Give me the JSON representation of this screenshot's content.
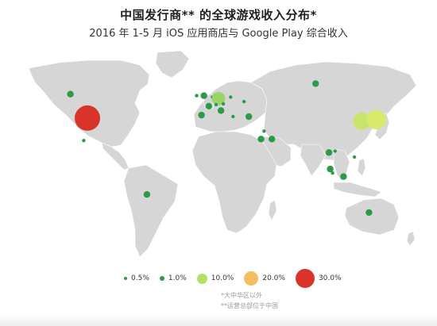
{
  "header": {
    "title": "中国发行商** 的全球游戏收入分布*",
    "subtitle": "2016 年 1-5 月 iOS 应用商店与 Google Play 综合收入"
  },
  "map": {
    "land_color": "#d6d6d6",
    "markers": [
      {
        "region": "canada-west",
        "lon": -112,
        "lat": 54,
        "share": 1.0,
        "color": "#2e9a49"
      },
      {
        "region": "united-states",
        "lon": -98,
        "lat": 38,
        "share": 30.0,
        "color": "#d9342b"
      },
      {
        "region": "mexico",
        "lon": -101,
        "lat": 23,
        "share": 0.5,
        "color": "#2e9a49"
      },
      {
        "region": "brazil",
        "lon": -49,
        "lat": -13,
        "share": 1.0,
        "color": "#2e9a49"
      },
      {
        "region": "united-kingdom",
        "lon": -2,
        "lat": 53,
        "share": 1.0,
        "color": "#2e9a49"
      },
      {
        "region": "ireland",
        "lon": -8,
        "lat": 53,
        "share": 0.5,
        "color": "#2e9a49"
      },
      {
        "region": "netherlands",
        "lon": 5,
        "lat": 52,
        "share": 0.5,
        "color": "#2e9a49"
      },
      {
        "region": "germany",
        "lon": 10,
        "lat": 51,
        "share": 4.0,
        "color": "#9ed36a"
      },
      {
        "region": "france",
        "lon": 2,
        "lat": 46,
        "share": 1.0,
        "color": "#2e9a49"
      },
      {
        "region": "switzerland",
        "lon": 8,
        "lat": 47,
        "share": 0.5,
        "color": "#2e9a49"
      },
      {
        "region": "austria",
        "lon": 14,
        "lat": 47.5,
        "share": 0.5,
        "color": "#2e9a49"
      },
      {
        "region": "poland",
        "lon": 20,
        "lat": 52,
        "share": 0.5,
        "color": "#2e9a49"
      },
      {
        "region": "italy",
        "lon": 12,
        "lat": 43,
        "share": 1.0,
        "color": "#2e9a49"
      },
      {
        "region": "spain",
        "lon": -4,
        "lat": 40,
        "share": 1.0,
        "color": "#2e9a49"
      },
      {
        "region": "greece",
        "lon": 22,
        "lat": 39,
        "share": 0.5,
        "color": "#2e9a49"
      },
      {
        "region": "turkey",
        "lon": 35,
        "lat": 39,
        "share": 1.0,
        "color": "#2e9a49"
      },
      {
        "region": "russia",
        "lon": 90,
        "lat": 61,
        "share": 1.0,
        "color": "#2e9a49"
      },
      {
        "region": "ukraine",
        "lon": 31,
        "lat": 49,
        "share": 0.5,
        "color": "#2e9a49"
      },
      {
        "region": "kuwait",
        "lon": 47.5,
        "lat": 29.3,
        "share": 0.5,
        "color": "#2e9a49"
      },
      {
        "region": "saudi-arabia",
        "lon": 45,
        "lat": 24,
        "share": 1.0,
        "color": "#2e9a49"
      },
      {
        "region": "uae",
        "lon": 54,
        "lat": 24,
        "share": 1.0,
        "color": "#2e9a49"
      },
      {
        "region": "thailand",
        "lon": 101,
        "lat": 15,
        "share": 1.0,
        "color": "#2e9a49"
      },
      {
        "region": "vietnam",
        "lon": 106,
        "lat": 16,
        "share": 0.5,
        "color": "#2e9a49"
      },
      {
        "region": "philippines",
        "lon": 122,
        "lat": 12,
        "share": 0.5,
        "color": "#2e9a49"
      },
      {
        "region": "malaysia",
        "lon": 102,
        "lat": 4,
        "share": 1.0,
        "color": "#2e9a49"
      },
      {
        "region": "singapore",
        "lon": 104,
        "lat": 1.3,
        "share": 0.5,
        "color": "#2e9a49"
      },
      {
        "region": "indonesia",
        "lon": 113,
        "lat": -1,
        "share": 1.0,
        "color": "#2e9a49"
      },
      {
        "region": "south-korea",
        "lon": 128,
        "lat": 36,
        "share": 10.0,
        "color": "#c9e46c"
      },
      {
        "region": "japan",
        "lon": 140,
        "lat": 37,
        "share": 14.0,
        "color": "#d7ea6a"
      },
      {
        "region": "australia",
        "lon": 134,
        "lat": -25,
        "share": 1.0,
        "color": "#2e9a49"
      }
    ]
  },
  "legend": {
    "items": [
      {
        "label": "0.5%",
        "color": "#2e9a49",
        "size": 4
      },
      {
        "label": "1.0%",
        "color": "#2e9a49",
        "size": 6
      },
      {
        "label": "10.0%",
        "color": "#b6df62",
        "size": 13
      },
      {
        "label": "20.0%",
        "color": "#f4bf63",
        "size": 18
      },
      {
        "label": "30.0%",
        "color": "#d9342b",
        "size": 24
      }
    ]
  },
  "notes": {
    "line1": "*大中华区以外",
    "line2": "**运营总部位于中国"
  }
}
